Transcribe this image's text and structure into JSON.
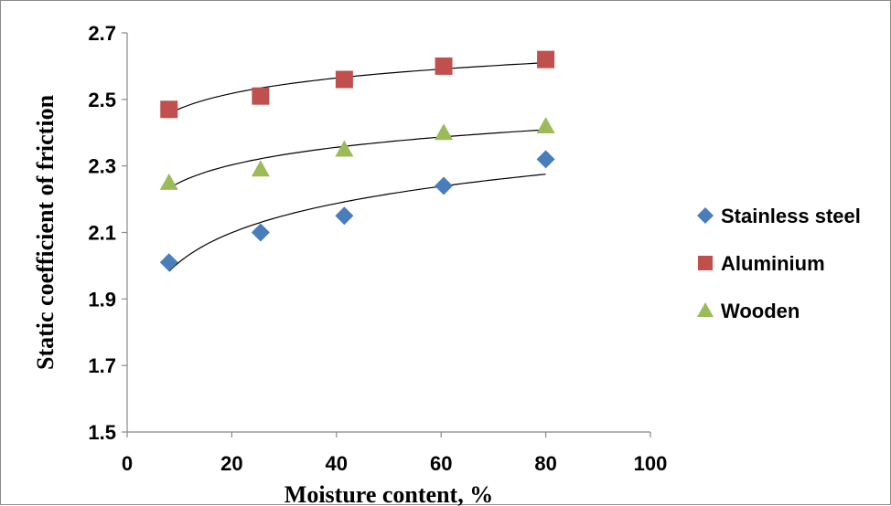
{
  "chart_data": {
    "type": "scatter",
    "xlabel": "Moisture content, %",
    "ylabel": "Static coefficient of friction",
    "xlim": [
      0,
      100
    ],
    "ylim": [
      1.5,
      2.7
    ],
    "xticks": [
      "0",
      "20",
      "40",
      "60",
      "80",
      "100"
    ],
    "yticks": [
      "1.5",
      "1.7",
      "1.9",
      "2.1",
      "2.3",
      "2.5",
      "2.7"
    ],
    "grid": false,
    "legend_position": "right",
    "trendline": "logarithmic",
    "series": [
      {
        "name": "Stainless steel",
        "marker": "diamond",
        "color": "#4a7ebb",
        "x": [
          8,
          25.5,
          41.5,
          60.5,
          80
        ],
        "y": [
          2.01,
          2.1,
          2.15,
          2.24,
          2.32
        ]
      },
      {
        "name": "Aluminium",
        "marker": "square",
        "color": "#c0504d",
        "x": [
          8,
          25.5,
          41.5,
          60.5,
          80
        ],
        "y": [
          2.47,
          2.51,
          2.56,
          2.6,
          2.62
        ]
      },
      {
        "name": "Wooden",
        "marker": "triangle",
        "color": "#9bbb59",
        "x": [
          8,
          25.5,
          41.5,
          60.5,
          80
        ],
        "y": [
          2.25,
          2.29,
          2.35,
          2.4,
          2.42
        ]
      }
    ]
  }
}
